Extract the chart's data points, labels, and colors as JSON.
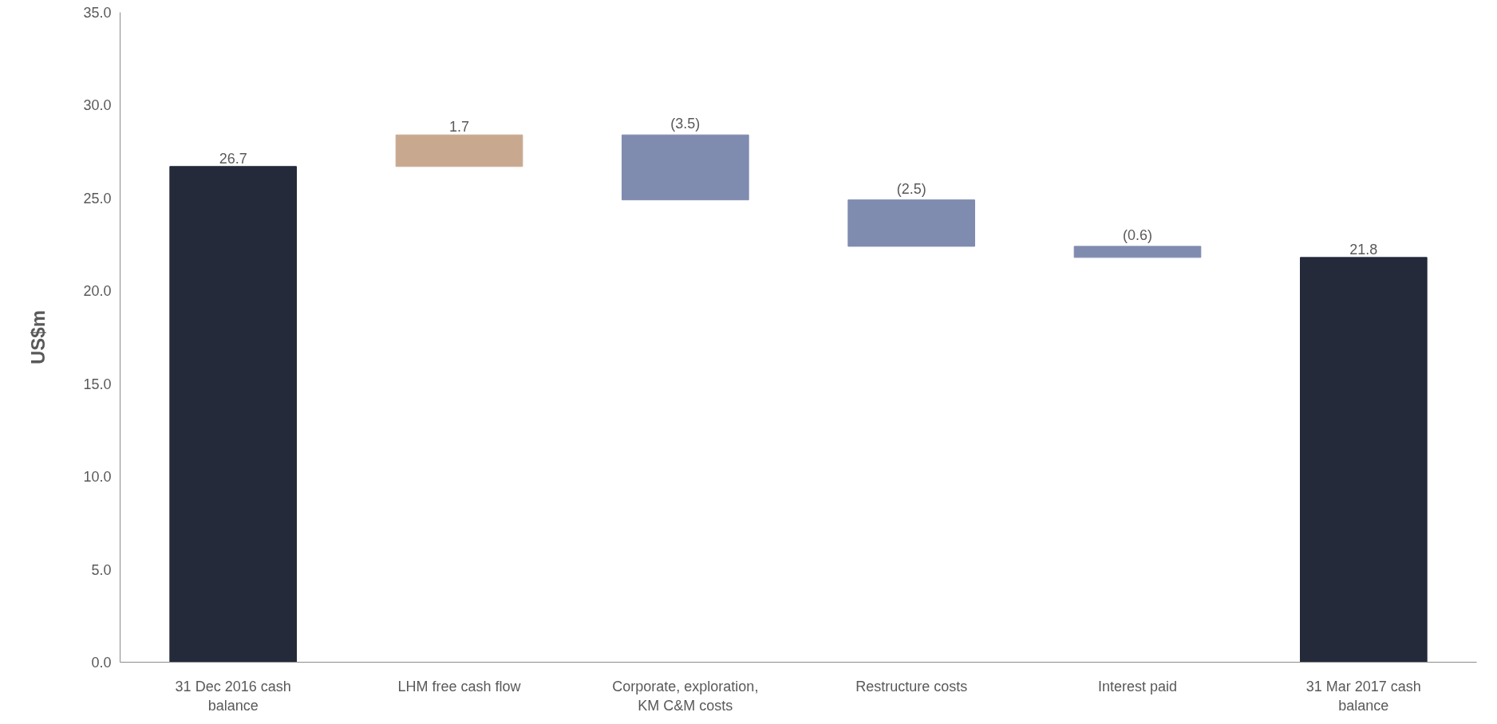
{
  "chart_data": {
    "type": "bar",
    "ylabel": "US$m",
    "categories": [
      "31 Dec 2016 cash balance",
      "LHM free cash flow",
      "Corporate, exploration, KM C&M costs",
      "Restructure costs",
      "Interest paid",
      "31 Mar 2017 cash balance"
    ],
    "values": [
      26.7,
      1.7,
      -3.5,
      -2.5,
      -0.6,
      21.8
    ],
    "base": [
      0,
      26.7,
      28.4,
      24.9,
      22.4,
      0
    ],
    "colors": [
      "#242a3a",
      "#c8a98f",
      "#808bb0",
      "#808bb0",
      "#808bb0",
      "#242a3a"
    ],
    "value_labels": [
      "26.7",
      "1.7",
      "(3.5)",
      "(2.5)",
      "(0.6)",
      "21.8"
    ],
    "ylim": [
      0,
      35
    ],
    "yticks": [
      {
        "value": 0,
        "label": "0.0"
      },
      {
        "value": 5,
        "label": "5.0"
      },
      {
        "value": 10,
        "label": "10.0"
      },
      {
        "value": 15,
        "label": "15.0"
      },
      {
        "value": 20,
        "label": "20.0"
      },
      {
        "value": 25,
        "label": "25.0"
      },
      {
        "value": 30,
        "label": "30.0"
      },
      {
        "value": 35,
        "label": "35.0"
      }
    ],
    "grid": false
  }
}
